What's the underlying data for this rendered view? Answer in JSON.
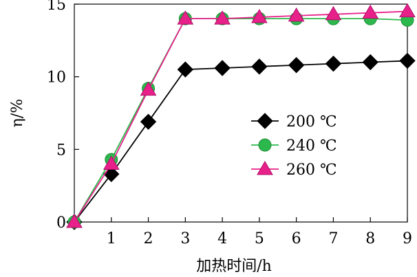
{
  "chart_data": {
    "type": "line",
    "title": "",
    "xlabel": "加热时间/h",
    "ylabel": "η/%",
    "xlim": [
      0,
      9
    ],
    "ylim": [
      0,
      15
    ],
    "x_ticks": [
      "1",
      "2",
      "3",
      "4",
      "5",
      "6",
      "7",
      "8",
      "9"
    ],
    "y_ticks": [
      "0",
      "5",
      "10",
      "15"
    ],
    "legend_position": "center-right",
    "grid": false,
    "x": [
      0,
      1,
      2,
      3,
      4,
      5,
      6,
      7,
      8,
      9
    ],
    "series": [
      {
        "name": "200 ℃",
        "marker": "diamond",
        "color": "#000000",
        "values": [
          0,
          3.3,
          6.9,
          10.5,
          10.6,
          10.7,
          10.8,
          10.9,
          11.0,
          11.1
        ]
      },
      {
        "name": "240 ℃",
        "marker": "circle",
        "color": "#2db84d",
        "values": [
          0,
          4.3,
          9.2,
          14.0,
          14.0,
          14.0,
          14.0,
          14.0,
          14.0,
          13.9
        ]
      },
      {
        "name": "260 ℃",
        "marker": "triangle",
        "color": "#e8208a",
        "values": [
          0,
          4.0,
          9.1,
          14.0,
          14.0,
          14.1,
          14.2,
          14.3,
          14.4,
          14.5
        ]
      }
    ]
  }
}
